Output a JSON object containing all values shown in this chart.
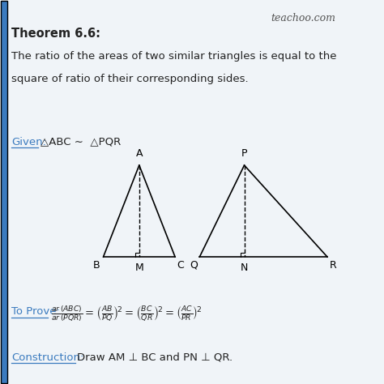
{
  "background_color": "#f0f4f8",
  "title_text": "Theorem 6.6:",
  "watermark": "teachoo.com",
  "theorem_text_line1": "The ratio of the areas of two similar triangles is equal to the",
  "theorem_text_line2": "square of ratio of their corresponding sides.",
  "given_label": "Given:",
  "given_text": "△ABC ∼  △PQR",
  "tri1_vertices": {
    "A": [
      0.5,
      1.0
    ],
    "B": [
      0.1,
      0.0
    ],
    "C": [
      0.9,
      0.0
    ]
  },
  "tri1_foot": {
    "M": [
      0.5,
      0.0
    ]
  },
  "tri2_vertices": {
    "P": [
      0.35,
      1.0
    ],
    "Q": [
      0.0,
      0.0
    ],
    "R": [
      1.0,
      0.0
    ]
  },
  "tri2_foot": {
    "N": [
      0.35,
      0.0
    ]
  },
  "prove_label": "To Prove:",
  "construction_label": "Construction:",
  "construction_text": "Draw AM ⊥ BC and PN ⊥ QR.",
  "accent_color": "#3b7bbf",
  "text_color": "#222222",
  "label_color": "#3b7bbf"
}
